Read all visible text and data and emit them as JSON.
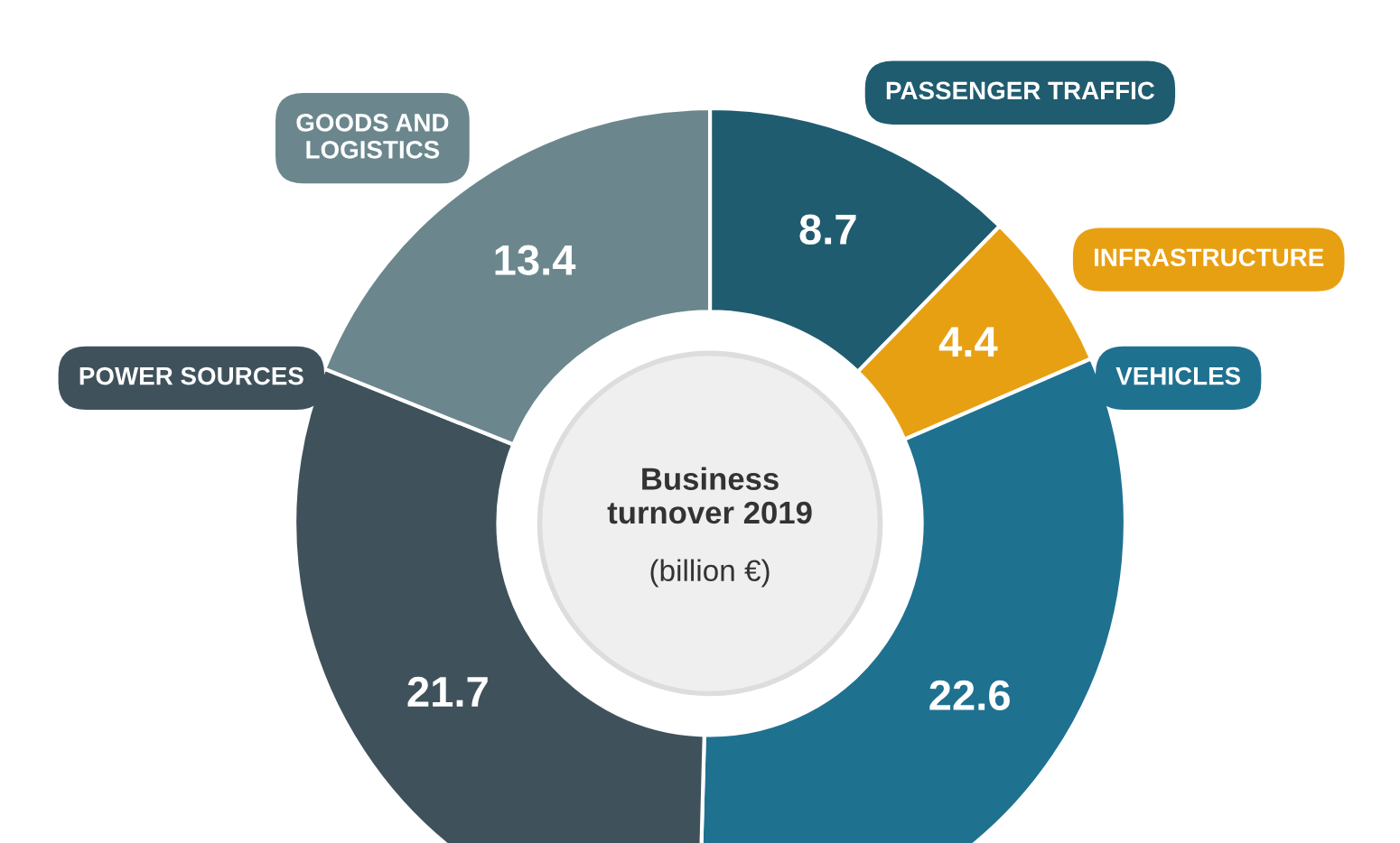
{
  "chart_data": {
    "type": "donut",
    "title": "Business\nturnover 2019",
    "subtitle": "(billion €)",
    "categories": [
      "PASSENGER TRAFFIC",
      "INFRASTRUCTURE",
      "VEHICLES",
      "POWER SOURCES",
      "GOODS AND\nLOGISTICS"
    ],
    "values": [
      8.7,
      4.4,
      22.6,
      21.7,
      13.4
    ],
    "colors": [
      "#1f5c70",
      "#e8a013",
      "#1f7190",
      "#3f525c",
      "#6b878d"
    ],
    "data_labels": true,
    "legend": false
  }
}
